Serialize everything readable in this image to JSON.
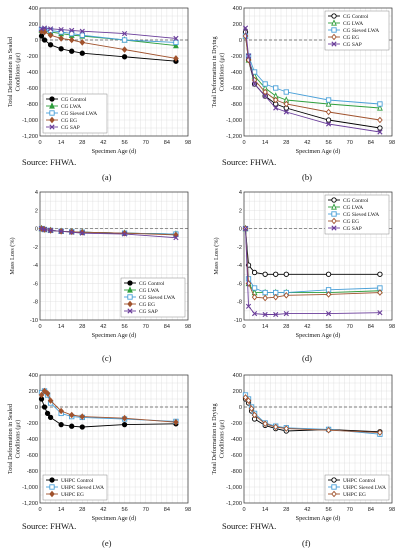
{
  "sources": [
    "Source: FHWA.",
    "Source: FHWA.",
    "Source: FHWA.",
    "Source: FHWA."
  ],
  "captions": [
    "(a)",
    "(b)",
    "(c)",
    "(d)",
    "(e)",
    "(f)"
  ],
  "colors": {
    "control": "#000000",
    "lwa": "#2e9e3c",
    "sieved": "#4aa0d8",
    "eg": "#a0522d",
    "sap": "#6a3d9a"
  },
  "chart_data": [
    {
      "panel": "a",
      "type": "line",
      "xlabel": "Specimen Age (d)",
      "ylabel": "Total Deformation in Sealed Conditions (με)",
      "xlim": [
        0,
        98
      ],
      "ylim": [
        -1200,
        400
      ],
      "xticks": [
        "0",
        "14",
        "28",
        "42",
        "56",
        "70",
        "84",
        "98"
      ],
      "yticks": [
        "-1,200",
        "-1,000",
        "-800",
        "-600",
        "-400",
        "-200",
        "0",
        "200",
        "400"
      ],
      "grid": true,
      "legend": "bottom-left",
      "series": [
        {
          "name": "CG Control",
          "x": [
            1,
            3,
            7,
            14,
            21,
            28,
            56,
            90
          ],
          "y": [
            50,
            0,
            -60,
            -110,
            -140,
            -165,
            -210,
            -265
          ]
        },
        {
          "name": "CG LWA",
          "x": [
            1,
            3,
            7,
            14,
            21,
            28,
            56,
            90
          ],
          "y": [
            120,
            120,
            100,
            80,
            60,
            50,
            0,
            -70
          ]
        },
        {
          "name": "CG Sieved LWA",
          "x": [
            1,
            3,
            7,
            14,
            21,
            28,
            56,
            90
          ],
          "y": [
            130,
            130,
            120,
            100,
            80,
            60,
            0,
            -30
          ]
        },
        {
          "name": "CG EG",
          "x": [
            1,
            3,
            7,
            14,
            21,
            28,
            56,
            90
          ],
          "y": [
            110,
            100,
            60,
            20,
            0,
            -30,
            -120,
            -230
          ]
        },
        {
          "name": "CG SAP",
          "x": [
            1,
            3,
            7,
            14,
            21,
            28,
            56,
            90
          ],
          "y": [
            140,
            150,
            140,
            130,
            120,
            110,
            80,
            20
          ]
        }
      ]
    },
    {
      "panel": "b",
      "type": "line",
      "xlabel": "Specimen Age (d)",
      "ylabel": "Total Deformation in Drying Conditions (με)",
      "xlim": [
        0,
        98
      ],
      "ylim": [
        -1200,
        400
      ],
      "xticks": [
        "0",
        "14",
        "28",
        "42",
        "56",
        "70",
        "84",
        "98"
      ],
      "yticks": [
        "-1,200",
        "-1,000",
        "-800",
        "-600",
        "-400",
        "-200",
        "0",
        "200",
        "400"
      ],
      "grid": true,
      "legend": "top-right",
      "series": [
        {
          "name": "CG Control",
          "x": [
            1,
            3,
            7,
            14,
            21,
            28,
            56,
            90
          ],
          "y": [
            100,
            -250,
            -550,
            -700,
            -800,
            -850,
            -1000,
            -1100
          ]
        },
        {
          "name": "CG LWA",
          "x": [
            1,
            3,
            7,
            14,
            21,
            28,
            56,
            90
          ],
          "y": [
            50,
            -250,
            -450,
            -600,
            -700,
            -750,
            -800,
            -850
          ]
        },
        {
          "name": "CG Sieved LWA",
          "x": [
            1,
            3,
            7,
            14,
            21,
            28,
            56,
            90
          ],
          "y": [
            50,
            -200,
            -400,
            -550,
            -600,
            -650,
            -750,
            -800
          ]
        },
        {
          "name": "CG EG",
          "x": [
            1,
            3,
            7,
            14,
            21,
            28,
            56,
            90
          ],
          "y": [
            50,
            -250,
            -500,
            -650,
            -750,
            -800,
            -900,
            -1000
          ]
        },
        {
          "name": "CG SAP",
          "x": [
            1,
            3,
            7,
            14,
            21,
            28,
            56,
            90
          ],
          "y": [
            150,
            -200,
            -550,
            -700,
            -850,
            -900,
            -1050,
            -1150
          ]
        }
      ]
    },
    {
      "panel": "c",
      "type": "line",
      "xlabel": "Specimen Age (d)",
      "ylabel": "Mass Loss (%)",
      "xlim": [
        0,
        98
      ],
      "ylim": [
        -10,
        4
      ],
      "xticks": [
        "0",
        "14",
        "28",
        "42",
        "56",
        "70",
        "84",
        "98"
      ],
      "yticks": [
        "-10",
        "-8",
        "-6",
        "-4",
        "-2",
        "0",
        "2",
        "4"
      ],
      "grid": true,
      "legend": "bottom-right",
      "series": [
        {
          "name": "CG Control",
          "x": [
            1,
            3,
            7,
            14,
            21,
            28,
            56,
            90
          ],
          "y": [
            0,
            -0.1,
            -0.2,
            -0.3,
            -0.35,
            -0.4,
            -0.5,
            -0.6
          ]
        },
        {
          "name": "CG LWA",
          "x": [
            1,
            3,
            7,
            14,
            21,
            28,
            56,
            90
          ],
          "y": [
            0,
            -0.1,
            -0.2,
            -0.3,
            -0.35,
            -0.4,
            -0.5,
            -0.6
          ]
        },
        {
          "name": "CG Sieved LWA",
          "x": [
            1,
            3,
            7,
            14,
            21,
            28,
            56,
            90
          ],
          "y": [
            0,
            -0.1,
            -0.2,
            -0.3,
            -0.35,
            -0.4,
            -0.5,
            -0.6
          ]
        },
        {
          "name": "CG EG",
          "x": [
            1,
            3,
            7,
            14,
            21,
            28,
            56,
            90
          ],
          "y": [
            0,
            -0.1,
            -0.2,
            -0.3,
            -0.35,
            -0.4,
            -0.5,
            -0.7
          ]
        },
        {
          "name": "CG SAP",
          "x": [
            1,
            3,
            7,
            14,
            21,
            28,
            56,
            90
          ],
          "y": [
            0,
            -0.1,
            -0.2,
            -0.3,
            -0.4,
            -0.5,
            -0.6,
            -1.0
          ]
        }
      ]
    },
    {
      "panel": "d",
      "type": "line",
      "xlabel": "Specimen Age (d)",
      "ylabel": "Mass Loss (%)",
      "xlim": [
        0,
        98
      ],
      "ylim": [
        -10,
        4
      ],
      "xticks": [
        "0",
        "14",
        "28",
        "42",
        "56",
        "70",
        "84",
        "98"
      ],
      "yticks": [
        "-10",
        "-8",
        "-6",
        "-4",
        "-2",
        "0",
        "2",
        "4"
      ],
      "grid": true,
      "legend": "top-right",
      "series": [
        {
          "name": "CG Control",
          "x": [
            1,
            3,
            7,
            14,
            21,
            28,
            56,
            90
          ],
          "y": [
            0,
            -4.0,
            -4.8,
            -5.0,
            -5.0,
            -5.0,
            -5.0,
            -5.0
          ]
        },
        {
          "name": "CG LWA",
          "x": [
            1,
            3,
            7,
            14,
            21,
            28,
            56,
            90
          ],
          "y": [
            0,
            -6.0,
            -7.0,
            -7.0,
            -7.0,
            -7.0,
            -7.0,
            -6.8
          ]
        },
        {
          "name": "CG Sieved LWA",
          "x": [
            1,
            3,
            7,
            14,
            21,
            28,
            56,
            90
          ],
          "y": [
            0,
            -5.5,
            -6.5,
            -7.0,
            -7.0,
            -7.0,
            -6.7,
            -6.5
          ]
        },
        {
          "name": "CG EG",
          "x": [
            1,
            3,
            7,
            14,
            21,
            28,
            56,
            90
          ],
          "y": [
            0,
            -6.0,
            -7.5,
            -7.6,
            -7.5,
            -7.3,
            -7.2,
            -7.0
          ]
        },
        {
          "name": "CG SAP",
          "x": [
            1,
            3,
            7,
            14,
            21,
            28,
            56,
            90
          ],
          "y": [
            0,
            -8.5,
            -9.3,
            -9.4,
            -9.4,
            -9.3,
            -9.3,
            -9.2
          ]
        }
      ]
    },
    {
      "panel": "e",
      "type": "line",
      "xlabel": "Specimen Age (d)",
      "ylabel": "Total Deformation in Sealed Conditions (με)",
      "xlim": [
        0,
        98
      ],
      "ylim": [
        -1200,
        400
      ],
      "xticks": [
        "0",
        "14",
        "28",
        "42",
        "56",
        "70",
        "84",
        "98"
      ],
      "yticks": [
        "-1,200",
        "-1,000",
        "-800",
        "-600",
        "-400",
        "-200",
        "0",
        "200",
        "400"
      ],
      "grid": true,
      "legend": "bottom-left",
      "series": [
        {
          "name": "UHPC Control",
          "x": [
            1,
            3,
            5,
            7,
            14,
            21,
            28,
            56,
            90
          ],
          "y": [
            100,
            0,
            -80,
            -130,
            -220,
            -240,
            -250,
            -220,
            -210
          ]
        },
        {
          "name": "UHPC Sieved LWA",
          "x": [
            1,
            3,
            5,
            7,
            14,
            21,
            28,
            56,
            90
          ],
          "y": [
            180,
            200,
            150,
            50,
            -80,
            -120,
            -130,
            -150,
            -180
          ]
        },
        {
          "name": "UHPC EG",
          "x": [
            1,
            3,
            5,
            7,
            14,
            21,
            28,
            56,
            90
          ],
          "y": [
            150,
            200,
            170,
            80,
            -50,
            -100,
            -120,
            -140,
            -190
          ]
        }
      ]
    },
    {
      "panel": "f",
      "type": "line",
      "xlabel": "Specimen Age (d)",
      "ylabel": "Total Deformation in Drying Conditions (με)",
      "xlim": [
        0,
        98
      ],
      "ylim": [
        -1200,
        400
      ],
      "xticks": [
        "0",
        "14",
        "28",
        "42",
        "56",
        "70",
        "84",
        "98"
      ],
      "yticks": [
        "-1,200",
        "-1,000",
        "-800",
        "-600",
        "-400",
        "-200",
        "0",
        "200",
        "400"
      ],
      "grid": true,
      "legend": "bottom-right",
      "series": [
        {
          "name": "UHPC Control",
          "x": [
            1,
            3,
            5,
            7,
            14,
            21,
            28,
            56,
            90
          ],
          "y": [
            100,
            50,
            -50,
            -150,
            -230,
            -270,
            -300,
            -280,
            -310
          ]
        },
        {
          "name": "UHPC Sieved LWA",
          "x": [
            1,
            3,
            5,
            7,
            14,
            21,
            28,
            56,
            90
          ],
          "y": [
            150,
            100,
            0,
            -80,
            -200,
            -240,
            -260,
            -280,
            -340
          ]
        },
        {
          "name": "UHPC EG",
          "x": [
            1,
            3,
            5,
            7,
            14,
            21,
            28,
            56,
            90
          ],
          "y": [
            120,
            80,
            -20,
            -100,
            -210,
            -250,
            -270,
            -290,
            -320
          ]
        }
      ]
    }
  ]
}
